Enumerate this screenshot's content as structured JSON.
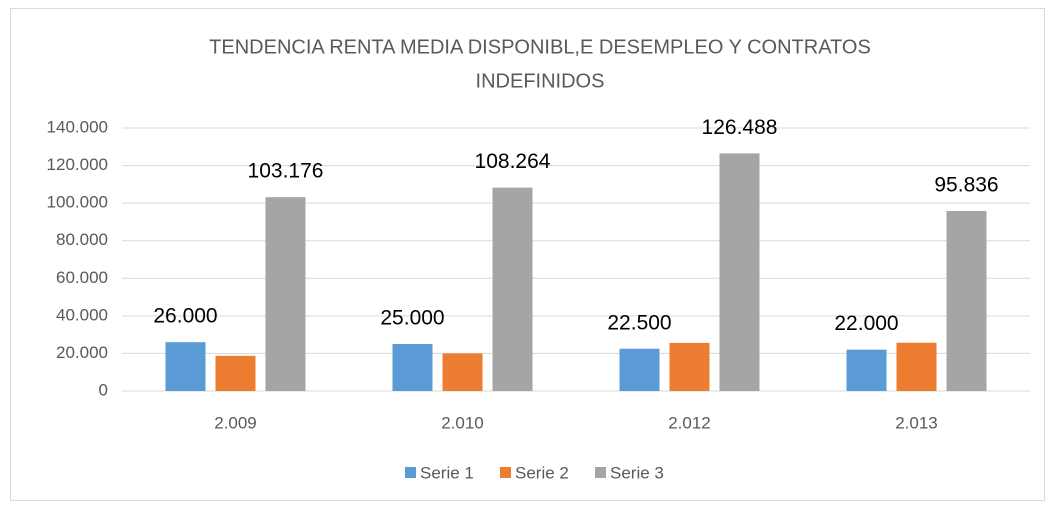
{
  "chart_data": {
    "type": "bar",
    "title": [
      "TENDENCIA RENTA MEDIA DISPONIBL,E DESEMPLEO Y CONTRATOS",
      "INDEFINIDOS"
    ],
    "categories": [
      "2.009",
      "2.010",
      "2.012",
      "2.013"
    ],
    "series": [
      {
        "name": "Serie 1",
        "color": "#5b9bd5",
        "values": [
          26000,
          25000,
          22500,
          22000
        ],
        "value_labels": [
          "26.000",
          "25.000",
          "22.500",
          "22.000"
        ]
      },
      {
        "name": "Serie 2",
        "color": "#ed7d31",
        "values": [
          18700,
          20000,
          25600,
          25700
        ]
      },
      {
        "name": "Serie 3",
        "color": "#a5a5a5",
        "values": [
          103176,
          108264,
          126488,
          95836
        ],
        "value_labels": [
          "103.176",
          "108.264",
          "126.488",
          "95.836"
        ]
      }
    ],
    "ylim": [
      0,
      140000
    ],
    "yticks": [
      0,
      {
        "value": 20000,
        "label": "20.000"
      },
      {
        "value": 40000,
        "label": "40.000"
      },
      {
        "value": 60000,
        "label": "60.000"
      },
      {
        "value": 80000,
        "label": "80.000"
      },
      {
        "value": 100000,
        "label": "100.000"
      },
      {
        "value": 120000,
        "label": "120.000"
      },
      {
        "value": 140000,
        "label": "140.000"
      }
    ],
    "grid": true,
    "legend": "bottom"
  }
}
